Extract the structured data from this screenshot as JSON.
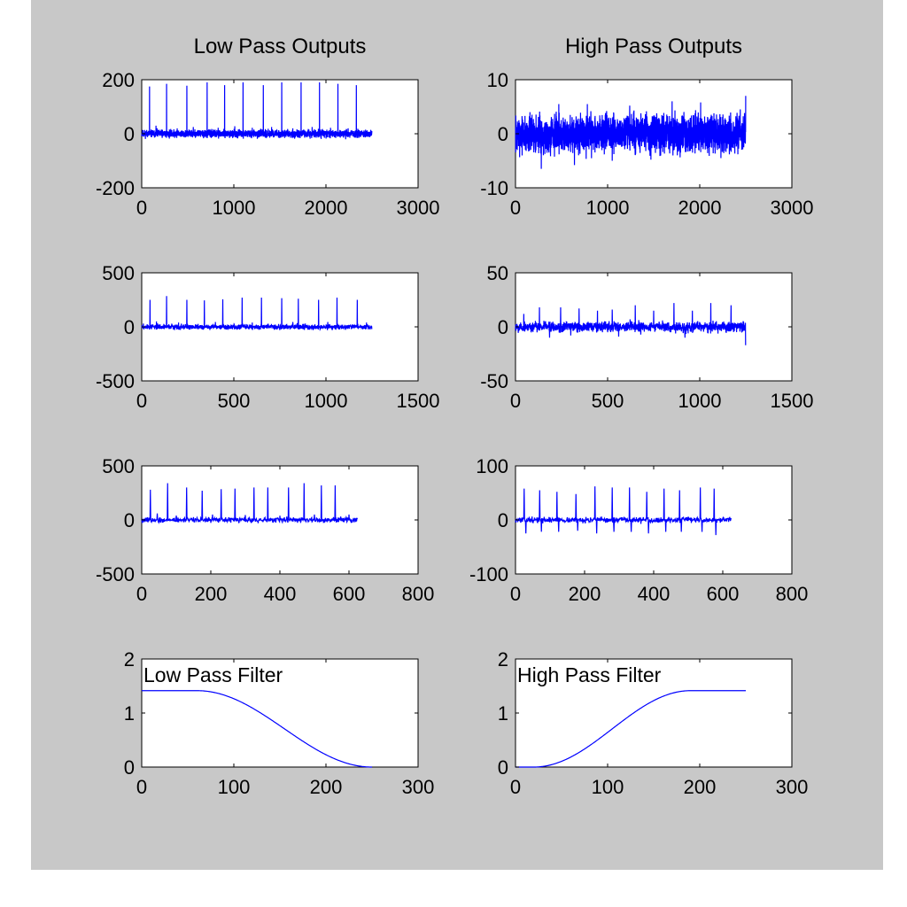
{
  "colors": {
    "figure_bg": "#c8c8c8",
    "axes_bg": "#ffffff",
    "line": "#0000ff",
    "text": "#000000"
  },
  "chart_data": [
    {
      "id": "lp1",
      "type": "line",
      "row": 0,
      "col": 0,
      "title": "Low Pass Outputs",
      "xlim": [
        0,
        3000
      ],
      "ylim": [
        -200,
        200
      ],
      "xticks": [
        0,
        1000,
        2000,
        3000
      ],
      "yticks": [
        -200,
        0,
        200
      ],
      "signal": {
        "kind": "spikes",
        "n": 2500,
        "baseline": 0,
        "noise": 7,
        "seed": 11,
        "spikes": [
          [
            85,
            175
          ],
          [
            155,
            30
          ],
          [
            270,
            185
          ],
          [
            385,
            20
          ],
          [
            490,
            178
          ],
          [
            560,
            25
          ],
          [
            710,
            190
          ],
          [
            830,
            22
          ],
          [
            900,
            180
          ],
          [
            1010,
            28
          ],
          [
            1100,
            190
          ],
          [
            1200,
            22
          ],
          [
            1320,
            180
          ],
          [
            1410,
            25
          ],
          [
            1520,
            190
          ],
          [
            1640,
            20
          ],
          [
            1730,
            190
          ],
          [
            1850,
            25
          ],
          [
            1930,
            190
          ],
          [
            2050,
            22
          ],
          [
            2130,
            185
          ],
          [
            2240,
            18
          ],
          [
            2330,
            180
          ],
          [
            2430,
            15
          ]
        ]
      }
    },
    {
      "id": "hp1",
      "type": "line",
      "row": 0,
      "col": 1,
      "title": "High Pass Outputs",
      "xlim": [
        0,
        3000
      ],
      "ylim": [
        -10,
        10
      ],
      "xticks": [
        0,
        1000,
        2000,
        3000
      ],
      "yticks": [
        -10,
        0,
        10
      ],
      "signal": {
        "kind": "noise",
        "n": 2500,
        "baseline": 0,
        "noise": 1.7,
        "seed": 7,
        "spikes": [
          [
            280,
            -6.5
          ],
          [
            470,
            5.5
          ],
          [
            640,
            -5.8
          ],
          [
            780,
            5.5
          ],
          [
            1050,
            -5
          ],
          [
            1240,
            5.2
          ],
          [
            1470,
            -4.8
          ],
          [
            1700,
            6
          ],
          [
            2010,
            5.8
          ],
          [
            2230,
            -4.5
          ],
          [
            2440,
            4.5
          ],
          [
            2500,
            7
          ]
        ]
      }
    },
    {
      "id": "lp2",
      "type": "line",
      "row": 1,
      "col": 0,
      "title": "",
      "xlim": [
        0,
        1500
      ],
      "ylim": [
        -500,
        500
      ],
      "xticks": [
        0,
        500,
        1000,
        1500
      ],
      "yticks": [
        -500,
        0,
        500
      ],
      "signal": {
        "kind": "spikes",
        "n": 1250,
        "baseline": 0,
        "noise": 12,
        "seed": 3,
        "spikes": [
          [
            45,
            250
          ],
          [
            80,
            50
          ],
          [
            135,
            285
          ],
          [
            200,
            40
          ],
          [
            245,
            250
          ],
          [
            340,
            245
          ],
          [
            400,
            45
          ],
          [
            440,
            255
          ],
          [
            545,
            270
          ],
          [
            600,
            40
          ],
          [
            650,
            270
          ],
          [
            760,
            265
          ],
          [
            820,
            45
          ],
          [
            850,
            260
          ],
          [
            960,
            250
          ],
          [
            1010,
            45
          ],
          [
            1060,
            270
          ],
          [
            1170,
            250
          ],
          [
            1220,
            40
          ]
        ]
      }
    },
    {
      "id": "hp2",
      "type": "line",
      "row": 1,
      "col": 1,
      "title": "",
      "xlim": [
        0,
        1500
      ],
      "ylim": [
        -50,
        50
      ],
      "xticks": [
        0,
        500,
        1000,
        1500
      ],
      "yticks": [
        -50,
        0,
        50
      ],
      "signal": {
        "kind": "spikes",
        "n": 1250,
        "baseline": 0,
        "noise": 2.5,
        "seed": 5,
        "spikes": [
          [
            45,
            12
          ],
          [
            130,
            18
          ],
          [
            185,
            -10
          ],
          [
            245,
            18
          ],
          [
            300,
            -8
          ],
          [
            345,
            17
          ],
          [
            445,
            15
          ],
          [
            525,
            16
          ],
          [
            560,
            -9
          ],
          [
            650,
            20
          ],
          [
            750,
            15
          ],
          [
            860,
            22
          ],
          [
            920,
            -10
          ],
          [
            960,
            15
          ],
          [
            1060,
            22
          ],
          [
            1170,
            20
          ],
          [
            1250,
            -17
          ]
        ]
      }
    },
    {
      "id": "lp3",
      "type": "line",
      "row": 2,
      "col": 0,
      "title": "",
      "xlim": [
        0,
        800
      ],
      "ylim": [
        -500,
        500
      ],
      "xticks": [
        0,
        200,
        400,
        600,
        800
      ],
      "yticks": [
        -500,
        0,
        500
      ],
      "signal": {
        "kind": "spikes",
        "n": 625,
        "baseline": 0,
        "noise": 12,
        "seed": 9,
        "spikes": [
          [
            25,
            280
          ],
          [
            45,
            60
          ],
          [
            75,
            340
          ],
          [
            100,
            40
          ],
          [
            130,
            300
          ],
          [
            175,
            270
          ],
          [
            205,
            50
          ],
          [
            230,
            285
          ],
          [
            270,
            290
          ],
          [
            300,
            45
          ],
          [
            325,
            300
          ],
          [
            365,
            300
          ],
          [
            400,
            40
          ],
          [
            425,
            300
          ],
          [
            470,
            340
          ],
          [
            500,
            50
          ],
          [
            520,
            320
          ],
          [
            560,
            320
          ],
          [
            600,
            50
          ]
        ]
      }
    },
    {
      "id": "hp3",
      "type": "line",
      "row": 2,
      "col": 1,
      "title": "",
      "xlim": [
        0,
        800
      ],
      "ylim": [
        -100,
        100
      ],
      "xticks": [
        0,
        200,
        400,
        600,
        800
      ],
      "yticks": [
        -100,
        0,
        100
      ],
      "signal": {
        "kind": "spikes",
        "n": 625,
        "baseline": 0,
        "noise": 2.5,
        "seed": 13,
        "spikes": [
          [
            25,
            58
          ],
          [
            30,
            -25
          ],
          [
            70,
            55
          ],
          [
            75,
            -22
          ],
          [
            120,
            52
          ],
          [
            125,
            -22
          ],
          [
            175,
            48
          ],
          [
            180,
            -20
          ],
          [
            230,
            62
          ],
          [
            235,
            -25
          ],
          [
            280,
            60
          ],
          [
            285,
            -22
          ],
          [
            330,
            60
          ],
          [
            335,
            -22
          ],
          [
            380,
            52
          ],
          [
            385,
            -25
          ],
          [
            430,
            58
          ],
          [
            435,
            -22
          ],
          [
            475,
            55
          ],
          [
            480,
            -22
          ],
          [
            535,
            60
          ],
          [
            540,
            -22
          ],
          [
            575,
            58
          ],
          [
            580,
            -28
          ]
        ]
      }
    },
    {
      "id": "lpf",
      "type": "line",
      "row": 3,
      "col": 0,
      "title": "",
      "annotation": "Low Pass Filter",
      "xlim": [
        0,
        300
      ],
      "ylim": [
        0,
        2
      ],
      "xticks": [
        0,
        100,
        200,
        300
      ],
      "yticks": [
        0,
        1,
        2
      ],
      "signal": {
        "kind": "cosine",
        "n": 251,
        "flat_end": 60,
        "ramp_end": 250,
        "high": 1.414,
        "low": 0,
        "direction": "down"
      }
    },
    {
      "id": "hpf",
      "type": "line",
      "row": 3,
      "col": 1,
      "title": "",
      "annotation": "High Pass Filter",
      "xlim": [
        0,
        300
      ],
      "ylim": [
        0,
        2
      ],
      "xticks": [
        0,
        100,
        200,
        300
      ],
      "yticks": [
        0,
        1,
        2
      ],
      "signal": {
        "kind": "cosine",
        "n": 251,
        "flat_end": 20,
        "ramp_end": 190,
        "high": 1.414,
        "low": 0,
        "direction": "up"
      }
    }
  ]
}
